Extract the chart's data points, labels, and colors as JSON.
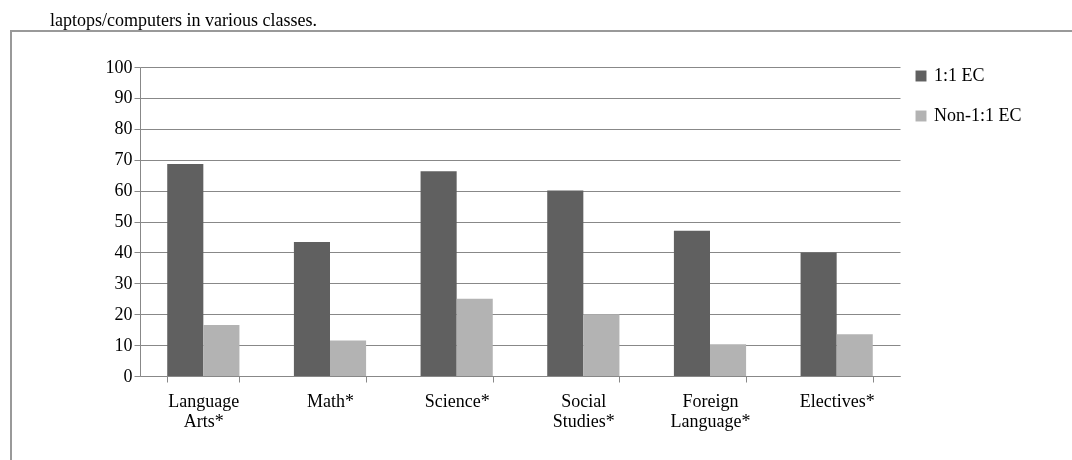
{
  "chart_data": {
    "type": "bar",
    "title": "laptops/computers in various classes.",
    "categories": [
      "Language Arts*",
      "Math*",
      "Science*",
      "Social Studies*",
      "Foreign Language*",
      "Electives*"
    ],
    "series": [
      {
        "name": "1:1 EC",
        "color": "#606060",
        "values": [
          68.6,
          43.4,
          66.3,
          60,
          47,
          40
        ]
      },
      {
        "name": "Non-1:1 EC",
        "color": "#b3b3b3",
        "values": [
          16.5,
          11.5,
          25,
          20,
          10.3,
          13.5
        ]
      }
    ],
    "ylim": [
      0,
      100
    ],
    "yticks": [
      0,
      10,
      20,
      30,
      40,
      50,
      60,
      70,
      80,
      90,
      100
    ],
    "grid": "y",
    "legend": "right"
  }
}
